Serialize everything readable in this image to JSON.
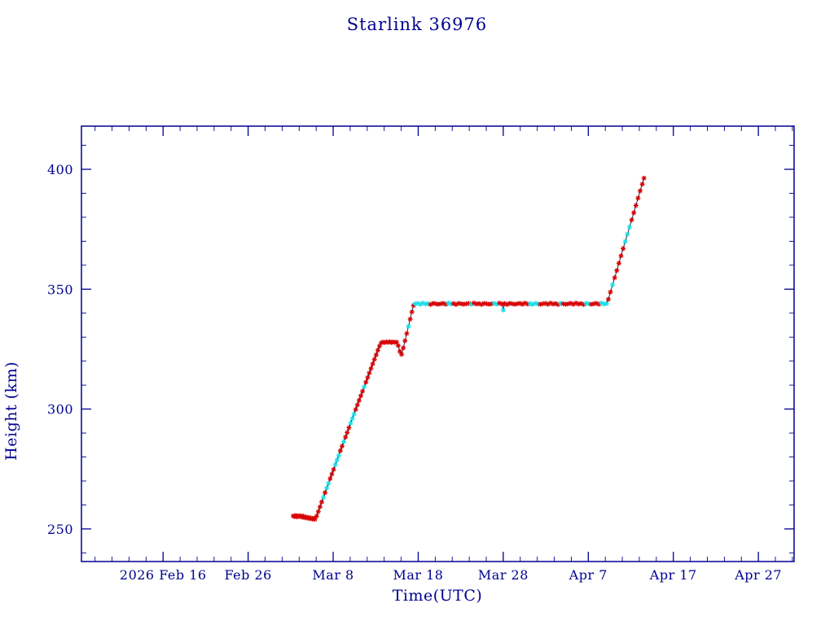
{
  "page": {
    "background": "#ffffff"
  },
  "chart_data": {
    "type": "scatter",
    "title": "Starlink 36976",
    "xlabel": "Time(UTC)",
    "ylabel": "Height (km)",
    "x_ticks": [
      {
        "day": 0,
        "label": "2026 Feb 16"
      },
      {
        "day": 10,
        "label": "Feb 26"
      },
      {
        "day": 20,
        "label": "Mar 8"
      },
      {
        "day": 30,
        "label": "Mar 18"
      },
      {
        "day": 40,
        "label": "Mar 28"
      },
      {
        "day": 50,
        "label": "Apr 7"
      },
      {
        "day": 60,
        "label": "Apr 17"
      },
      {
        "day": 70,
        "label": "Apr 27"
      }
    ],
    "x_minor_step_days": 2,
    "y_ticks": [
      250,
      300,
      350,
      400
    ],
    "y_minor_step_km": 10,
    "x_range_days": [
      -9.6,
      74.2
    ],
    "y_range_km": [
      236.4,
      418.0
    ],
    "grid": false,
    "legend": "none",
    "marker": "asterisk",
    "colors": {
      "axis": "#000092",
      "text": "#000092",
      "line": "#16163a",
      "marker_red": "#d80000",
      "marker_cyan": "#18dfe8"
    },
    "x_unit": "days after 2026 Feb 16 (tick spacing 10 days)",
    "y_unit": "km",
    "points": [
      [
        15.3,
        255.4,
        "r"
      ],
      [
        15.45,
        255.1,
        "r"
      ],
      [
        15.6,
        255.6,
        "r"
      ],
      [
        15.75,
        255.0,
        "r"
      ],
      [
        15.9,
        255.4,
        "r"
      ],
      [
        16.05,
        255.2,
        "r"
      ],
      [
        16.2,
        255.5,
        "r"
      ],
      [
        16.35,
        254.9,
        "r"
      ],
      [
        16.5,
        255.3,
        "r"
      ],
      [
        16.65,
        254.7,
        "r"
      ],
      [
        16.8,
        255.0,
        "r"
      ],
      [
        16.95,
        254.5,
        "r"
      ],
      [
        17.1,
        254.8,
        "r"
      ],
      [
        17.25,
        254.3,
        "r"
      ],
      [
        17.4,
        254.6,
        "r"
      ],
      [
        17.55,
        254.1,
        "r"
      ],
      [
        17.7,
        254.4,
        "r"
      ],
      [
        17.85,
        254.0,
        "r"
      ],
      [
        18.05,
        255.3,
        "r"
      ],
      [
        18.25,
        257.2,
        "r"
      ],
      [
        18.45,
        259.2,
        "r"
      ],
      [
        18.65,
        261.2,
        "r"
      ],
      [
        18.85,
        263.2,
        "c"
      ],
      [
        19.05,
        265.1,
        "r"
      ],
      [
        19.25,
        267.1,
        "c"
      ],
      [
        19.45,
        269.0,
        "c"
      ],
      [
        19.65,
        271.0,
        "r"
      ],
      [
        19.85,
        272.9,
        "r"
      ],
      [
        20.05,
        274.8,
        "r"
      ],
      [
        20.25,
        276.8,
        "c"
      ],
      [
        20.45,
        278.7,
        "c"
      ],
      [
        20.65,
        280.6,
        "c"
      ],
      [
        20.85,
        282.6,
        "r"
      ],
      [
        21.05,
        284.5,
        "r"
      ],
      [
        21.25,
        286.4,
        "c"
      ],
      [
        21.45,
        288.3,
        "r"
      ],
      [
        21.65,
        290.2,
        "r"
      ],
      [
        21.85,
        292.2,
        "r"
      ],
      [
        22.05,
        294.1,
        "c"
      ],
      [
        22.25,
        296.0,
        "c"
      ],
      [
        22.45,
        297.9,
        "c"
      ],
      [
        22.65,
        299.8,
        "r"
      ],
      [
        22.85,
        301.7,
        "r"
      ],
      [
        23.05,
        303.6,
        "r"
      ],
      [
        23.25,
        305.5,
        "r"
      ],
      [
        23.45,
        307.4,
        "r"
      ],
      [
        23.65,
        309.3,
        "c"
      ],
      [
        23.85,
        311.2,
        "r"
      ],
      [
        24.05,
        313.1,
        "r"
      ],
      [
        24.25,
        315.0,
        "r"
      ],
      [
        24.45,
        316.9,
        "r"
      ],
      [
        24.65,
        318.8,
        "r"
      ],
      [
        24.85,
        320.7,
        "r"
      ],
      [
        25.05,
        322.6,
        "r"
      ],
      [
        25.25,
        324.5,
        "r"
      ],
      [
        25.45,
        326.3,
        "r"
      ],
      [
        25.65,
        327.6,
        "r"
      ],
      [
        25.85,
        327.9,
        "r"
      ],
      [
        26.05,
        327.7,
        "r"
      ],
      [
        26.25,
        328.0,
        "r"
      ],
      [
        26.45,
        327.8,
        "r"
      ],
      [
        26.65,
        328.1,
        "r"
      ],
      [
        26.85,
        327.7,
        "r"
      ],
      [
        27.05,
        328.0,
        "r"
      ],
      [
        27.25,
        327.8,
        "r"
      ],
      [
        27.45,
        327.9,
        "r"
      ],
      [
        27.65,
        326.5,
        "r"
      ],
      [
        27.85,
        324.0,
        "r"
      ],
      [
        28.05,
        322.8,
        "r"
      ],
      [
        28.25,
        325.5,
        "r"
      ],
      [
        28.45,
        328.5,
        "r"
      ],
      [
        28.65,
        331.5,
        "r"
      ],
      [
        28.85,
        334.5,
        "c"
      ],
      [
        29.05,
        337.5,
        "r"
      ],
      [
        29.25,
        340.5,
        "r"
      ],
      [
        29.45,
        343.2,
        "r"
      ],
      [
        29.65,
        343.9,
        "c"
      ],
      [
        29.95,
        344.1,
        "c"
      ],
      [
        30.25,
        343.7,
        "c"
      ],
      [
        30.55,
        344.2,
        "c"
      ],
      [
        30.85,
        343.8,
        "c"
      ],
      [
        31.15,
        344.0,
        "c"
      ],
      [
        31.45,
        343.6,
        "r"
      ],
      [
        31.75,
        344.1,
        "r"
      ],
      [
        32.05,
        343.9,
        "r"
      ],
      [
        32.35,
        343.7,
        "r"
      ],
      [
        32.65,
        343.9,
        "r"
      ],
      [
        32.95,
        344.1,
        "r"
      ],
      [
        33.25,
        343.7,
        "r"
      ],
      [
        33.55,
        344.2,
        "c"
      ],
      [
        33.85,
        343.8,
        "c"
      ],
      [
        34.15,
        344.0,
        "r"
      ],
      [
        34.45,
        343.6,
        "r"
      ],
      [
        34.75,
        344.1,
        "r"
      ],
      [
        35.05,
        343.9,
        "r"
      ],
      [
        35.35,
        343.7,
        "r"
      ],
      [
        35.65,
        343.9,
        "r"
      ],
      [
        35.95,
        344.1,
        "r"
      ],
      [
        36.25,
        343.7,
        "c"
      ],
      [
        36.55,
        344.2,
        "r"
      ],
      [
        36.85,
        343.8,
        "r"
      ],
      [
        37.15,
        344.0,
        "r"
      ],
      [
        37.45,
        343.6,
        "r"
      ],
      [
        37.75,
        344.1,
        "r"
      ],
      [
        38.05,
        343.9,
        "r"
      ],
      [
        38.35,
        343.7,
        "r"
      ],
      [
        38.65,
        343.9,
        "r"
      ],
      [
        38.95,
        344.1,
        "c"
      ],
      [
        39.25,
        343.7,
        "c"
      ],
      [
        39.55,
        344.2,
        "r"
      ],
      [
        39.85,
        343.8,
        "r"
      ],
      [
        40.0,
        341.3,
        "c"
      ],
      [
        40.15,
        344.0,
        "r"
      ],
      [
        40.45,
        343.6,
        "r"
      ],
      [
        40.75,
        344.1,
        "r"
      ],
      [
        41.05,
        343.9,
        "r"
      ],
      [
        41.35,
        343.7,
        "r"
      ],
      [
        41.65,
        343.9,
        "r"
      ],
      [
        41.95,
        344.1,
        "r"
      ],
      [
        42.25,
        343.7,
        "r"
      ],
      [
        42.55,
        344.2,
        "r"
      ],
      [
        42.85,
        343.8,
        "r"
      ],
      [
        43.15,
        344.0,
        "c"
      ],
      [
        43.45,
        343.6,
        "c"
      ],
      [
        43.75,
        344.1,
        "c"
      ],
      [
        44.05,
        343.9,
        "c"
      ],
      [
        44.35,
        343.7,
        "r"
      ],
      [
        44.65,
        343.9,
        "r"
      ],
      [
        44.95,
        344.1,
        "r"
      ],
      [
        45.25,
        343.7,
        "r"
      ],
      [
        45.55,
        344.2,
        "r"
      ],
      [
        45.85,
        343.8,
        "r"
      ],
      [
        46.15,
        344.0,
        "r"
      ],
      [
        46.45,
        343.6,
        "r"
      ],
      [
        46.75,
        344.1,
        "c"
      ],
      [
        47.05,
        343.9,
        "r"
      ],
      [
        47.35,
        343.7,
        "r"
      ],
      [
        47.65,
        343.9,
        "r"
      ],
      [
        47.95,
        344.1,
        "r"
      ],
      [
        48.25,
        343.7,
        "r"
      ],
      [
        48.55,
        344.2,
        "r"
      ],
      [
        48.85,
        343.8,
        "r"
      ],
      [
        49.15,
        344.0,
        "r"
      ],
      [
        49.45,
        343.6,
        "r"
      ],
      [
        49.75,
        344.1,
        "c"
      ],
      [
        50.05,
        343.9,
        "c"
      ],
      [
        50.35,
        343.7,
        "r"
      ],
      [
        50.65,
        343.9,
        "r"
      ],
      [
        50.95,
        344.1,
        "r"
      ],
      [
        51.25,
        343.7,
        "r"
      ],
      [
        51.55,
        344.2,
        "c"
      ],
      [
        51.85,
        343.8,
        "c"
      ],
      [
        52.15,
        344.0,
        "c"
      ],
      [
        52.35,
        345.8,
        "r"
      ],
      [
        52.6,
        348.8,
        "r"
      ],
      [
        52.85,
        351.8,
        "c"
      ],
      [
        53.1,
        354.8,
        "r"
      ],
      [
        53.35,
        357.8,
        "r"
      ],
      [
        53.6,
        360.8,
        "r"
      ],
      [
        53.85,
        363.9,
        "r"
      ],
      [
        54.1,
        366.9,
        "r"
      ],
      [
        54.35,
        369.9,
        "c"
      ],
      [
        54.6,
        372.9,
        "c"
      ],
      [
        54.85,
        375.9,
        "c"
      ],
      [
        55.1,
        378.9,
        "r"
      ],
      [
        55.35,
        381.9,
        "r"
      ],
      [
        55.6,
        384.9,
        "r"
      ],
      [
        55.85,
        388.0,
        "r"
      ],
      [
        56.1,
        391.0,
        "r"
      ],
      [
        56.35,
        393.8,
        "r"
      ],
      [
        56.55,
        396.3,
        "r"
      ]
    ]
  }
}
